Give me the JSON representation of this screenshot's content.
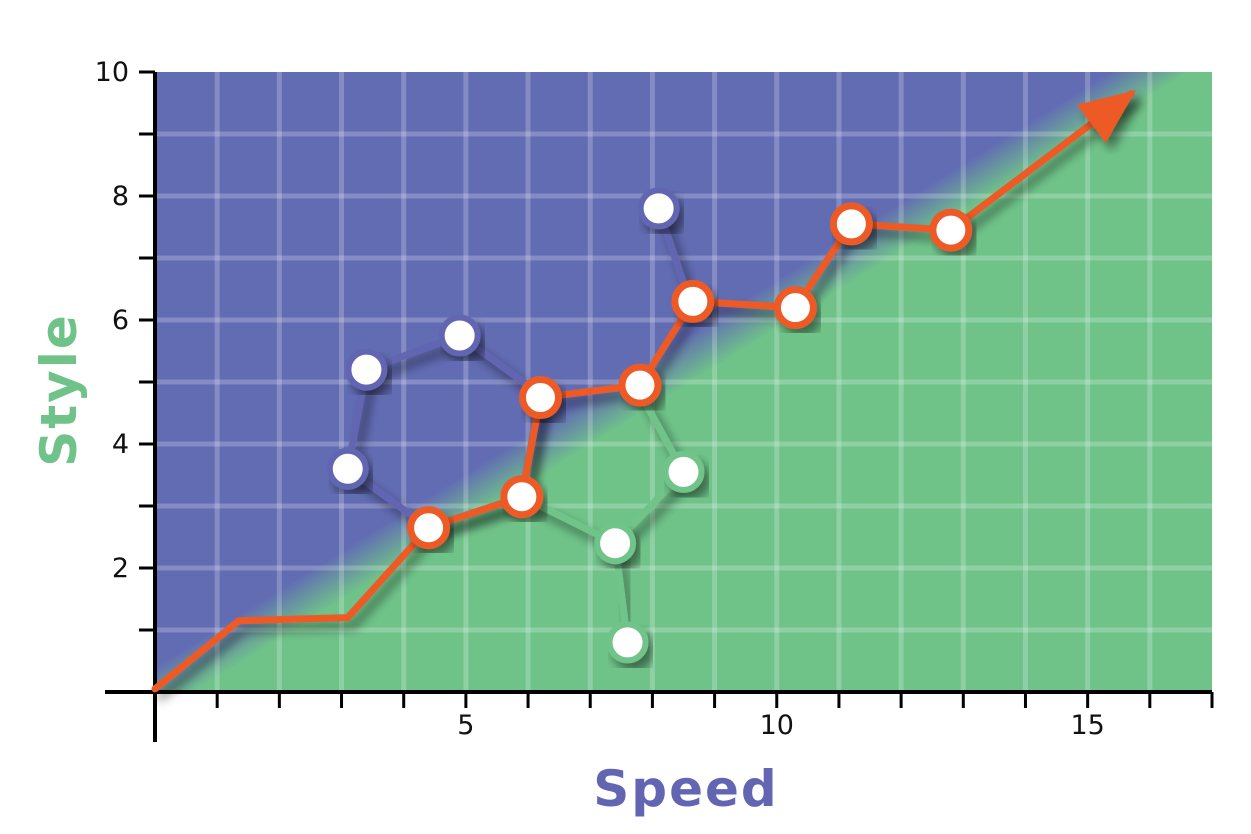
{
  "chart_data": {
    "type": "line",
    "xlabel": "Speed",
    "ylabel": "Style",
    "xlim": [
      0,
      17
    ],
    "ylim": [
      0,
      10
    ],
    "x_ticks": [
      5,
      10,
      15
    ],
    "y_ticks": [
      2,
      4,
      6,
      8,
      10
    ],
    "grid": true,
    "background": {
      "upper_region_color": "#6fc389",
      "lower_region_color": "#626cb3",
      "boundary": [
        [
          0,
          0
        ],
        [
          16,
          10
        ]
      ]
    },
    "series": [
      {
        "color": "#6266b2",
        "points": [
          [
            3.1,
            3.6
          ],
          [
            3.4,
            5.2
          ],
          [
            4.9,
            5.75
          ],
          [
            6.2,
            4.8
          ],
          [
            5.9,
            3.15
          ],
          [
            4.4,
            2.65
          ],
          [
            3.1,
            3.6
          ]
        ],
        "open_markers": [
          [
            3.1,
            3.6
          ],
          [
            3.4,
            5.2
          ],
          [
            4.9,
            5.75
          ]
        ]
      },
      {
        "color": "#6266b2",
        "points": [
          [
            8.1,
            7.8
          ],
          [
            8.6,
            6.3
          ]
        ],
        "open_markers": [
          [
            8.1,
            7.8
          ]
        ]
      },
      {
        "color": "#6fc389",
        "points": [
          [
            5.9,
            3.15
          ],
          [
            7.4,
            2.4
          ],
          [
            8.5,
            3.55
          ],
          [
            7.7,
            5.0
          ]
        ],
        "open_markers": [
          [
            7.4,
            2.4
          ],
          [
            8.5,
            3.55
          ]
        ]
      },
      {
        "color": "#6fc389",
        "points": [
          [
            7.4,
            2.4
          ],
          [
            7.6,
            0.8
          ]
        ],
        "open_markers": [
          [
            7.6,
            0.8
          ]
        ]
      },
      {
        "color": "#ee5a28",
        "arrow_end": true,
        "points": [
          [
            0.0,
            0.05
          ],
          [
            1.35,
            1.15
          ],
          [
            3.1,
            1.2
          ],
          [
            4.4,
            2.65
          ],
          [
            5.9,
            3.15
          ],
          [
            6.2,
            4.75
          ],
          [
            7.8,
            4.95
          ],
          [
            8.65,
            6.3
          ],
          [
            10.3,
            6.2
          ],
          [
            11.2,
            7.55
          ],
          [
            12.8,
            7.45
          ],
          [
            15.7,
            9.65
          ]
        ],
        "markers": [
          [
            4.4,
            2.65
          ],
          [
            5.9,
            3.15
          ],
          [
            6.2,
            4.75
          ],
          [
            7.8,
            4.95
          ],
          [
            8.65,
            6.3
          ],
          [
            10.3,
            6.2
          ],
          [
            11.2,
            7.55
          ],
          [
            12.8,
            7.45
          ]
        ]
      }
    ]
  }
}
